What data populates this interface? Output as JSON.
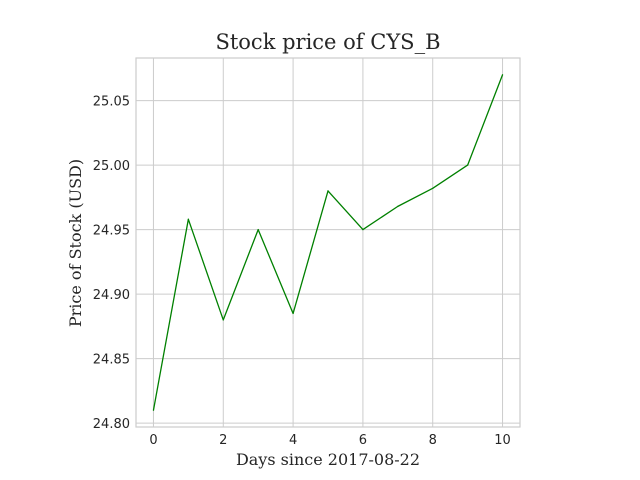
{
  "chart_data": {
    "type": "line",
    "title": "Stock price of CYS_B",
    "xlabel": "Days since 2017-08-22",
    "ylabel": "Price of Stock (USD)",
    "xlim": [
      -0.5,
      10.5
    ],
    "ylim": [
      24.797,
      25.083
    ],
    "x_ticks": [
      0,
      2,
      4,
      6,
      8,
      10
    ],
    "y_ticks": [
      24.8,
      24.85,
      24.9,
      24.95,
      25.0,
      25.05
    ],
    "grid": true,
    "series": [
      {
        "color": "#008000",
        "x": [
          0,
          1,
          2,
          3,
          4,
          5,
          6,
          7,
          8,
          9,
          10
        ],
        "values": [
          24.81,
          24.958,
          24.88,
          24.95,
          24.885,
          24.98,
          24.95,
          24.968,
          24.982,
          25.0,
          25.07
        ]
      }
    ]
  }
}
